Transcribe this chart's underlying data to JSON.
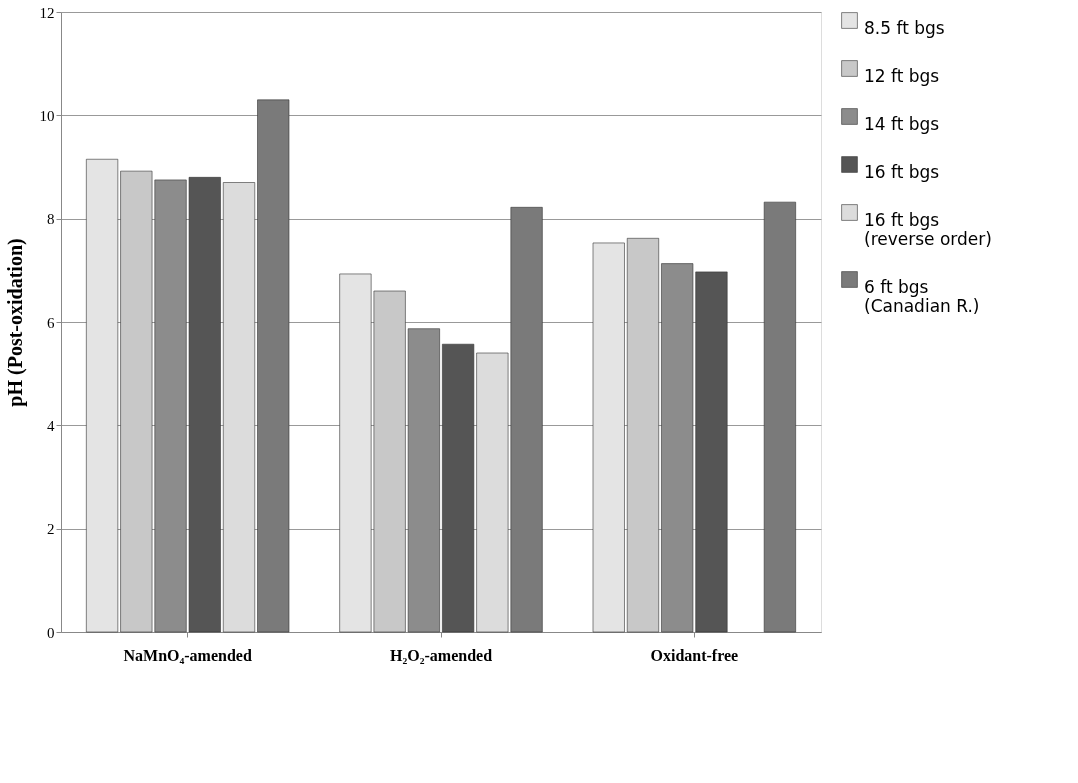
{
  "chart_data": {
    "type": "bar",
    "ylabel": "pH (Post-oxidation)",
    "categories": [
      "NaMnO₄-amended",
      "H₂O₂-amended",
      "Oxidant-free"
    ],
    "series": [
      {
        "name": "8.5 ft bgs",
        "color": "#e4e4e4",
        "values": [
          9.15,
          6.93,
          7.53
        ]
      },
      {
        "name": "12 ft bgs",
        "color": "#c8c8c8",
        "values": [
          8.92,
          6.6,
          7.62
        ]
      },
      {
        "name": "14 ft bgs",
        "color": "#8c8c8c",
        "values": [
          8.75,
          5.87,
          7.13
        ]
      },
      {
        "name": "16 ft bgs",
        "color": "#555555",
        "values": [
          8.8,
          5.57,
          6.97
        ]
      },
      {
        "name": "16 ft bgs\n(reverse order)",
        "color": "#dcdcdc",
        "values": [
          8.7,
          5.4,
          null
        ]
      },
      {
        "name": "6 ft bgs\n(Canadian R.)",
        "color": "#7a7a7a",
        "values": [
          10.3,
          8.22,
          8.32
        ]
      }
    ],
    "ylim": [
      0,
      12
    ],
    "yticks": [
      0,
      2,
      4,
      6,
      8,
      10,
      12
    ],
    "grid": "y",
    "legend": "right"
  }
}
